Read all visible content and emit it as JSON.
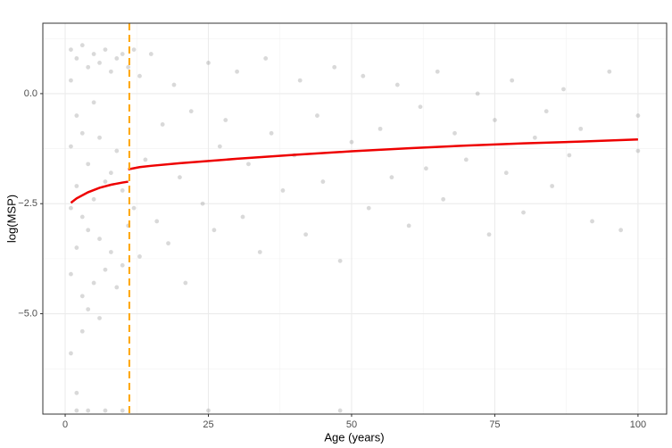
{
  "chart_data": {
    "type": "scatter",
    "xlabel": "Age (years)",
    "ylabel": "log(MSP)",
    "xlim": [
      -3.9,
      105
    ],
    "ylim": [
      -7.28,
      1.6
    ],
    "xticks": [
      0,
      25,
      50,
      75,
      100
    ],
    "yticks": [
      {
        "value": 0,
        "label": "0.0"
      },
      {
        "value": -2.5,
        "label": "−2.5"
      },
      {
        "value": -5,
        "label": "−5.0"
      }
    ],
    "x_minor_grid": [
      12.5,
      37.5,
      62.5,
      87.5
    ],
    "y_minor_grid": [
      1.25,
      -1.25,
      -3.75,
      -6.25
    ],
    "grid": true,
    "vline": {
      "x": 11.2,
      "color": "#FFA500"
    },
    "series": [
      {
        "type": "scatter",
        "color": "#808080",
        "x": [
          1,
          1,
          1,
          1,
          1,
          1,
          2,
          2,
          2,
          2,
          2,
          3,
          3,
          3,
          3,
          3,
          4,
          4,
          4,
          4,
          5,
          5,
          5,
          5,
          6,
          6,
          6,
          6,
          7,
          7,
          7,
          8,
          8,
          8,
          9,
          9,
          9,
          10,
          10,
          10,
          11,
          11,
          12,
          12,
          13,
          13,
          14,
          15,
          16,
          17,
          18,
          19,
          20,
          21,
          22,
          24,
          25,
          26,
          27,
          28,
          30,
          31,
          32,
          34,
          35,
          36,
          38,
          40,
          41,
          42,
          44,
          45,
          47,
          48,
          50,
          52,
          53,
          55,
          57,
          58,
          60,
          62,
          63,
          65,
          66,
          68,
          70,
          72,
          74,
          75,
          77,
          78,
          80,
          82,
          84,
          85,
          87,
          88,
          90,
          92,
          95,
          97,
          100,
          100,
          2,
          4,
          7,
          10,
          25,
          48
        ],
        "values": [
          1.0,
          0.3,
          -1.2,
          -2.6,
          -4.1,
          -5.9,
          0.8,
          -0.5,
          -2.1,
          -3.5,
          -6.8,
          1.1,
          -0.9,
          -2.8,
          -4.6,
          -5.4,
          0.6,
          -1.6,
          -3.1,
          -4.9,
          0.9,
          -0.2,
          -2.4,
          -4.3,
          0.7,
          -1.0,
          -3.3,
          -5.1,
          1.0,
          -2.0,
          -4.0,
          0.5,
          -1.8,
          -3.6,
          0.8,
          -1.3,
          -4.4,
          0.9,
          -2.2,
          -3.9,
          0.6,
          -3.0,
          1.0,
          -2.6,
          0.4,
          -3.7,
          -1.5,
          0.9,
          -2.9,
          -0.7,
          -3.4,
          0.2,
          -1.9,
          -4.3,
          -0.4,
          -2.5,
          0.7,
          -3.1,
          -1.2,
          -0.6,
          0.5,
          -2.8,
          -1.6,
          -3.6,
          0.8,
          -0.9,
          -2.2,
          -1.4,
          0.3,
          -3.2,
          -0.5,
          -2.0,
          0.6,
          -3.8,
          -1.1,
          0.4,
          -2.6,
          -0.8,
          -1.9,
          0.2,
          -3.0,
          -0.3,
          -1.7,
          0.5,
          -2.4,
          -0.9,
          -1.5,
          0.0,
          -3.2,
          -0.6,
          -1.8,
          0.3,
          -2.7,
          -1.0,
          -0.4,
          -2.1,
          0.1,
          -1.4,
          -0.8,
          -2.9,
          0.5,
          -3.1,
          -0.5,
          -1.3,
          -7.2,
          -7.2,
          -7.2,
          -7.2,
          -7.2,
          -7.2
        ]
      },
      {
        "type": "line",
        "color": "#EE0000",
        "x": [
          1,
          2,
          4,
          6,
          8,
          10,
          11,
          11,
          11,
          13,
          15,
          20,
          30,
          40,
          50,
          60,
          70,
          80,
          90,
          100
        ],
        "values": [
          -2.48,
          -2.38,
          -2.24,
          -2.14,
          -2.07,
          -2.02,
          -2.0,
          null,
          -1.72,
          -1.67,
          -1.64,
          -1.58,
          -1.48,
          -1.39,
          -1.31,
          -1.24,
          -1.18,
          -1.13,
          -1.09,
          -1.04
        ]
      }
    ]
  }
}
